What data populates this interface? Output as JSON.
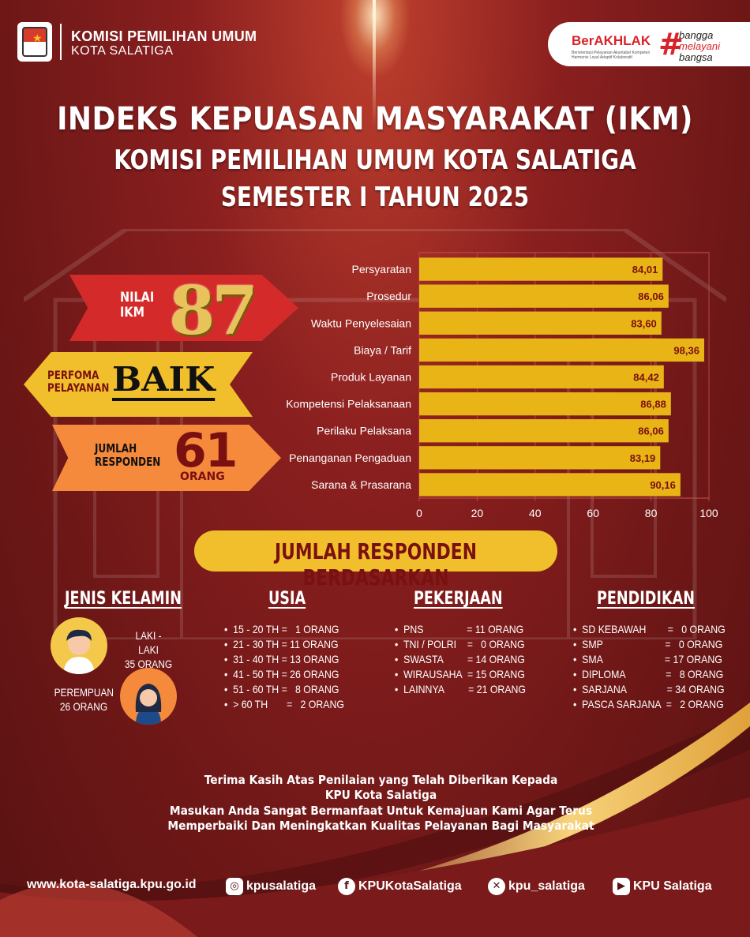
{
  "header": {
    "org_line1": "KOMISI PEMILIHAN UMUM",
    "org_line2": "KOTA SALATIGA",
    "badge_berakhlak": "BerAKHLAK",
    "badge_small": "Berorientasi Pelayanan Akuntabel Kompeten Harmonis Loyal Adaptif Kolaboratif",
    "badge_hash": "#",
    "badge_line1": "bangga",
    "badge_line2": "melayani",
    "badge_line3": "bangsa"
  },
  "title": {
    "line1": "INDEKS KEPUASAN MASYARAKAT (IKM)",
    "line2": "KOMISI PEMILIHAN UMUM KOTA SALATIGA",
    "line3": "SEMESTER I TAHUN 2025"
  },
  "summary": {
    "ikm_label_1": "NILAI",
    "ikm_label_2": "IKM",
    "ikm_value": "87",
    "perf_label_1": "PERFOMA",
    "perf_label_2": "PELAYANAN",
    "perf_value": "BAIK",
    "resp_label_1": "JUMLAH",
    "resp_label_2": "RESPONDEN",
    "resp_value": "61",
    "resp_unit": "ORANG"
  },
  "chart_data": {
    "type": "bar",
    "orientation": "horizontal",
    "categories": [
      "Persyaratan",
      "Prosedur",
      "Waktu Penyelesaian",
      "Biaya / Tarif",
      "Produk Layanan",
      "Kompetensi Pelaksanaan",
      "Perilaku Pelaksana",
      "Penanganan Pengaduan",
      "Sarana & Prasarana"
    ],
    "values": [
      84.01,
      86.06,
      83.6,
      98.36,
      84.42,
      86.88,
      86.06,
      83.19,
      90.16
    ],
    "value_labels": [
      "84,01",
      "86,06",
      "83,60",
      "98,36",
      "84,42",
      "86,88",
      "86,06",
      "83,19",
      "90,16"
    ],
    "xlim": [
      0,
      100
    ],
    "xticks": [
      0,
      20,
      40,
      60,
      80,
      100
    ],
    "bar_color": "#e8b416",
    "label_color": "#7a1010"
  },
  "section": {
    "title": "JUMLAH RESPONDEN BERDASARKAN"
  },
  "gender": {
    "title": "JENIS KELAMIN",
    "male_label": "LAKI - LAKI",
    "male_count": "35 ORANG",
    "female_label": "PEREMPUAN",
    "female_count": "26 ORANG"
  },
  "usia": {
    "title": "USIA",
    "items": [
      "15 - 20 TH =   1 ORANG",
      "21 - 30 TH = 11 ORANG",
      "31 - 40 TH = 13 ORANG",
      "41 - 50 TH = 26 ORANG",
      "51 - 60 TH =   8 ORANG",
      "> 60 TH       =   2 ORANG"
    ]
  },
  "pekerjaan": {
    "title": "PEKERJAAN",
    "items": [
      "PNS                = 11 ORANG",
      "TNI / POLRI    =   0 ORANG",
      "SWASTA         = 14 ORANG",
      "WIRAUSAHA  = 15 ORANG",
      "LAINNYA         = 21 ORANG"
    ]
  },
  "pendidikan": {
    "title": "PENDIDIKAN",
    "items": [
      "SD KEBAWAH        =   0 ORANG",
      "SMP                       =   0 ORANG",
      "SMA                       = 17 ORANG",
      "DIPLOMA               =   8 ORANG",
      "SARJANA               = 34 ORANG",
      "PASCA SARJANA  =   2 ORANG"
    ]
  },
  "thanks": {
    "line1": "Terima Kasih Atas Penilaian yang Telah Diberikan Kepada",
    "line2": "KPU Kota Salatiga",
    "line3": "Masukan Anda Sangat Bermanfaat Untuk Kemajuan Kami Agar Terus",
    "line4": "Memperbaiki Dan Meningkatkan Kualitas Pelayanan Bagi Masyarakat"
  },
  "footer": {
    "website": "www.kota-salatiga.kpu.go.id",
    "instagram": "kpusalatiga",
    "facebook": "KPUKotaSalatiga",
    "x": "kpu_salatiga",
    "youtube": "KPU Salatiga",
    "ig_icon": "instagram-icon",
    "fb_icon": "facebook-icon",
    "x_icon": "x-icon",
    "yt_icon": "youtube-icon"
  },
  "colors": {
    "background": "#7a1a1a",
    "accent_gold": "#f0bf2b",
    "accent_red": "#d42a2a",
    "accent_orange": "#f58a3c"
  }
}
